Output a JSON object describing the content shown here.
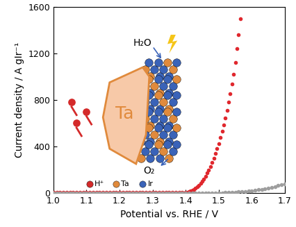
{
  "chart_data": {
    "type": "scatter",
    "x_label": "Potential vs. RHE / V",
    "y_label": "Current density / A gIr⁻¹",
    "xlim": [
      1.0,
      1.7
    ],
    "xticks": [
      1.0,
      1.1,
      1.2,
      1.3,
      1.4,
      1.5,
      1.6,
      1.7
    ],
    "ylim": [
      0,
      1600
    ],
    "yticks": [
      0,
      400,
      800,
      1200,
      1600
    ],
    "grid": false,
    "annotations": [
      "H₂O",
      "O₂",
      "Ta"
    ],
    "inset_legend": [
      {
        "label": "H⁺",
        "color": "#d42a2a"
      },
      {
        "label": "Ta",
        "color": "#e08a3c"
      },
      {
        "label": "Ir",
        "color": "#3a63b8"
      }
    ],
    "series": [
      {
        "color": "#e0282e",
        "marker": "o",
        "x": [
          1.0,
          1.01,
          1.02,
          1.03,
          1.04,
          1.05,
          1.06,
          1.07,
          1.08,
          1.09,
          1.1,
          1.11,
          1.12,
          1.13,
          1.14,
          1.15,
          1.16,
          1.17,
          1.18,
          1.19,
          1.2,
          1.21,
          1.22,
          1.23,
          1.24,
          1.25,
          1.26,
          1.27,
          1.28,
          1.29,
          1.3,
          1.31,
          1.32,
          1.33,
          1.34,
          1.35,
          1.36,
          1.37,
          1.38,
          1.39,
          1.4,
          1.405,
          1.41,
          1.415,
          1.42,
          1.425,
          1.43,
          1.435,
          1.44,
          1.445,
          1.45,
          1.455,
          1.46,
          1.465,
          1.47,
          1.475,
          1.48,
          1.485,
          1.49,
          1.495,
          1.5,
          1.505,
          1.51,
          1.515,
          1.52,
          1.525,
          1.53,
          1.535,
          1.54,
          1.545,
          1.55,
          1.555,
          1.56,
          1.565
        ],
        "values": [
          3,
          3,
          3,
          3,
          3,
          3,
          3,
          3,
          3,
          3,
          3,
          3,
          3,
          3,
          3,
          3,
          3,
          3,
          3,
          3,
          3,
          3,
          3,
          3,
          3,
          3,
          3,
          3,
          3,
          3,
          3,
          3,
          3,
          3,
          3,
          3,
          3,
          3,
          4,
          4,
          5,
          8,
          12,
          17,
          24,
          32,
          42,
          54,
          68,
          84,
          102,
          122,
          145,
          170,
          198,
          228,
          262,
          298,
          338,
          380,
          425,
          475,
          528,
          585,
          645,
          710,
          780,
          855,
          935,
          1020,
          1120,
          1240,
          1360,
          1500
        ]
      },
      {
        "color": "#9e9e9e",
        "marker": "o",
        "x": [
          1.0,
          1.01,
          1.02,
          1.03,
          1.04,
          1.05,
          1.06,
          1.07,
          1.08,
          1.09,
          1.1,
          1.11,
          1.12,
          1.13,
          1.14,
          1.15,
          1.16,
          1.17,
          1.18,
          1.19,
          1.2,
          1.21,
          1.22,
          1.23,
          1.24,
          1.25,
          1.26,
          1.27,
          1.28,
          1.29,
          1.3,
          1.31,
          1.32,
          1.33,
          1.34,
          1.35,
          1.36,
          1.37,
          1.38,
          1.39,
          1.4,
          1.41,
          1.42,
          1.43,
          1.44,
          1.45,
          1.46,
          1.47,
          1.48,
          1.49,
          1.5,
          1.51,
          1.52,
          1.53,
          1.54,
          1.55,
          1.56,
          1.57,
          1.58,
          1.59,
          1.6,
          1.61,
          1.62,
          1.63,
          1.64,
          1.65,
          1.66,
          1.67,
          1.68,
          1.69,
          1.7
        ],
        "values": [
          1,
          1,
          1,
          1,
          1,
          1,
          1,
          1,
          1,
          1,
          1,
          1,
          1,
          1,
          1,
          1,
          1,
          1,
          1,
          1,
          1,
          1,
          1,
          1,
          1,
          1,
          1,
          1,
          1,
          1,
          1,
          1,
          1,
          1,
          1,
          1,
          1,
          1,
          1,
          1,
          1,
          1,
          1,
          1,
          1,
          1,
          1,
          1,
          1,
          1,
          1,
          2,
          3,
          4,
          5,
          7,
          9,
          11,
          13,
          16,
          19,
          23,
          27,
          32,
          37,
          43,
          49,
          56,
          63,
          71,
          80
        ]
      }
    ]
  }
}
